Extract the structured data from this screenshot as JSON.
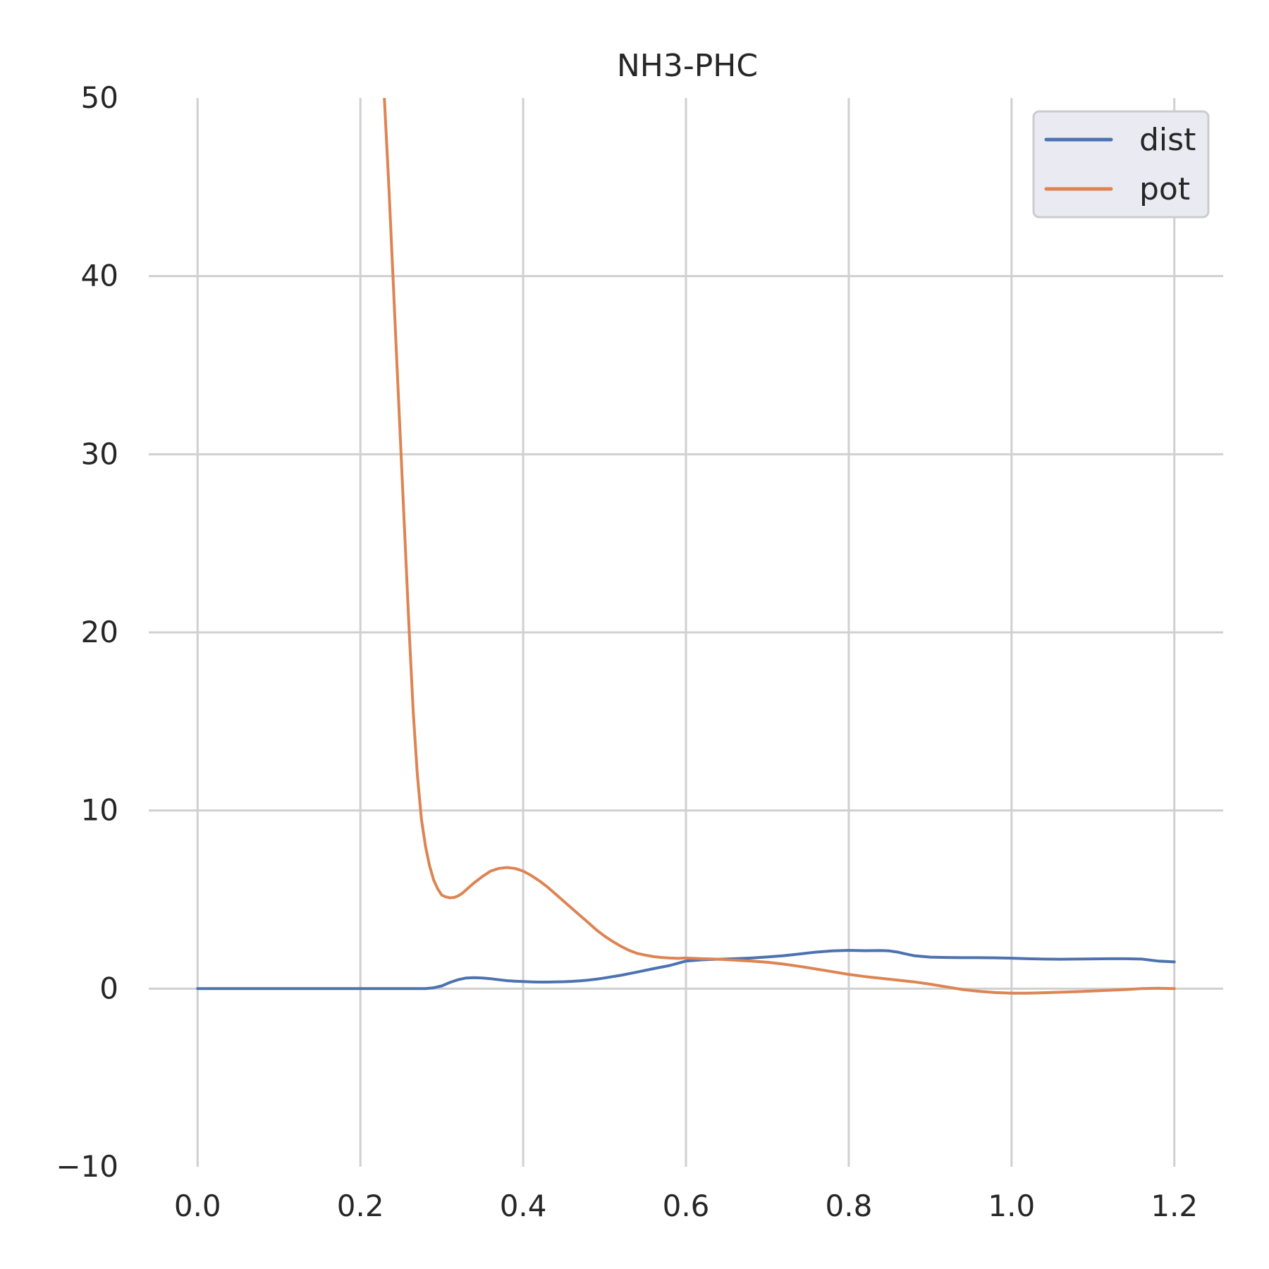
{
  "chart_data": {
    "type": "line",
    "title": "NH3-PHC",
    "xlabel": "",
    "ylabel": "",
    "xlim": [
      -0.06,
      1.26
    ],
    "ylim": [
      -10,
      50
    ],
    "x_ticks": [
      0.0,
      0.2,
      0.4,
      0.6,
      0.8,
      1.0,
      1.2
    ],
    "x_tick_labels": [
      "0.0",
      "0.2",
      "0.4",
      "0.6",
      "0.8",
      "1.0",
      "1.2"
    ],
    "y_ticks": [
      -10,
      0,
      10,
      20,
      30,
      40,
      50
    ],
    "y_tick_labels": [
      "−10",
      "0",
      "10",
      "20",
      "30",
      "40",
      "50"
    ],
    "grid": true,
    "legend": "top-right",
    "series": [
      {
        "name": "dist",
        "color": "#4c72b0",
        "x": [
          0.0,
          0.05,
          0.1,
          0.15,
          0.2,
          0.25,
          0.28,
          0.29,
          0.3,
          0.31,
          0.32,
          0.33,
          0.34,
          0.35,
          0.36,
          0.37,
          0.38,
          0.39,
          0.4,
          0.41,
          0.42,
          0.43,
          0.44,
          0.45,
          0.46,
          0.47,
          0.48,
          0.49,
          0.5,
          0.52,
          0.54,
          0.56,
          0.58,
          0.6,
          0.62,
          0.64,
          0.66,
          0.68,
          0.7,
          0.72,
          0.74,
          0.76,
          0.78,
          0.8,
          0.82,
          0.84,
          0.85,
          0.86,
          0.87,
          0.88,
          0.9,
          0.92,
          0.94,
          0.96,
          0.98,
          1.0,
          1.02,
          1.04,
          1.06,
          1.08,
          1.1,
          1.12,
          1.14,
          1.16,
          1.18,
          1.2
        ],
        "y": [
          0.0,
          0.0,
          0.0,
          0.0,
          0.0,
          0.0,
          0.0,
          0.05,
          0.15,
          0.35,
          0.5,
          0.6,
          0.62,
          0.6,
          0.56,
          0.5,
          0.45,
          0.42,
          0.4,
          0.38,
          0.37,
          0.37,
          0.38,
          0.39,
          0.41,
          0.44,
          0.48,
          0.53,
          0.6,
          0.75,
          0.93,
          1.12,
          1.3,
          1.55,
          1.62,
          1.65,
          1.68,
          1.72,
          1.78,
          1.85,
          1.95,
          2.05,
          2.12,
          2.15,
          2.13,
          2.14,
          2.12,
          2.05,
          1.95,
          1.85,
          1.77,
          1.75,
          1.74,
          1.74,
          1.73,
          1.71,
          1.68,
          1.66,
          1.65,
          1.66,
          1.67,
          1.68,
          1.68,
          1.66,
          1.55,
          1.5
        ]
      },
      {
        "name": "pot",
        "color": "#dd8452",
        "x": [
          0.2295,
          0.235,
          0.24,
          0.245,
          0.25,
          0.255,
          0.26,
          0.265,
          0.27,
          0.275,
          0.28,
          0.285,
          0.29,
          0.295,
          0.3,
          0.305,
          0.31,
          0.315,
          0.32,
          0.325,
          0.33,
          0.335,
          0.34,
          0.35,
          0.36,
          0.37,
          0.38,
          0.39,
          0.4,
          0.41,
          0.42,
          0.43,
          0.44,
          0.45,
          0.46,
          0.47,
          0.48,
          0.49,
          0.5,
          0.51,
          0.52,
          0.53,
          0.54,
          0.55,
          0.56,
          0.57,
          0.58,
          0.59,
          0.6,
          0.62,
          0.64,
          0.66,
          0.68,
          0.7,
          0.72,
          0.74,
          0.76,
          0.78,
          0.8,
          0.82,
          0.84,
          0.86,
          0.88,
          0.9,
          0.92,
          0.94,
          0.96,
          0.98,
          1.0,
          1.02,
          1.04,
          1.06,
          1.08,
          1.1,
          1.12,
          1.14,
          1.16,
          1.18,
          1.2
        ],
        "y": [
          50.0,
          45.0,
          40.0,
          35.0,
          30.0,
          25.0,
          20.0,
          15.5,
          12.0,
          9.5,
          8.0,
          6.9,
          6.1,
          5.6,
          5.25,
          5.15,
          5.1,
          5.12,
          5.2,
          5.35,
          5.55,
          5.75,
          5.95,
          6.3,
          6.6,
          6.75,
          6.8,
          6.75,
          6.6,
          6.35,
          6.05,
          5.7,
          5.3,
          4.9,
          4.5,
          4.1,
          3.7,
          3.3,
          2.95,
          2.65,
          2.38,
          2.15,
          1.98,
          1.88,
          1.8,
          1.75,
          1.72,
          1.7,
          1.72,
          1.68,
          1.65,
          1.6,
          1.55,
          1.48,
          1.38,
          1.25,
          1.1,
          0.95,
          0.8,
          0.68,
          0.58,
          0.48,
          0.38,
          0.25,
          0.1,
          -0.05,
          -0.15,
          -0.22,
          -0.25,
          -0.25,
          -0.23,
          -0.2,
          -0.17,
          -0.13,
          -0.09,
          -0.05,
          0.0,
          0.02,
          0.0
        ]
      }
    ]
  }
}
